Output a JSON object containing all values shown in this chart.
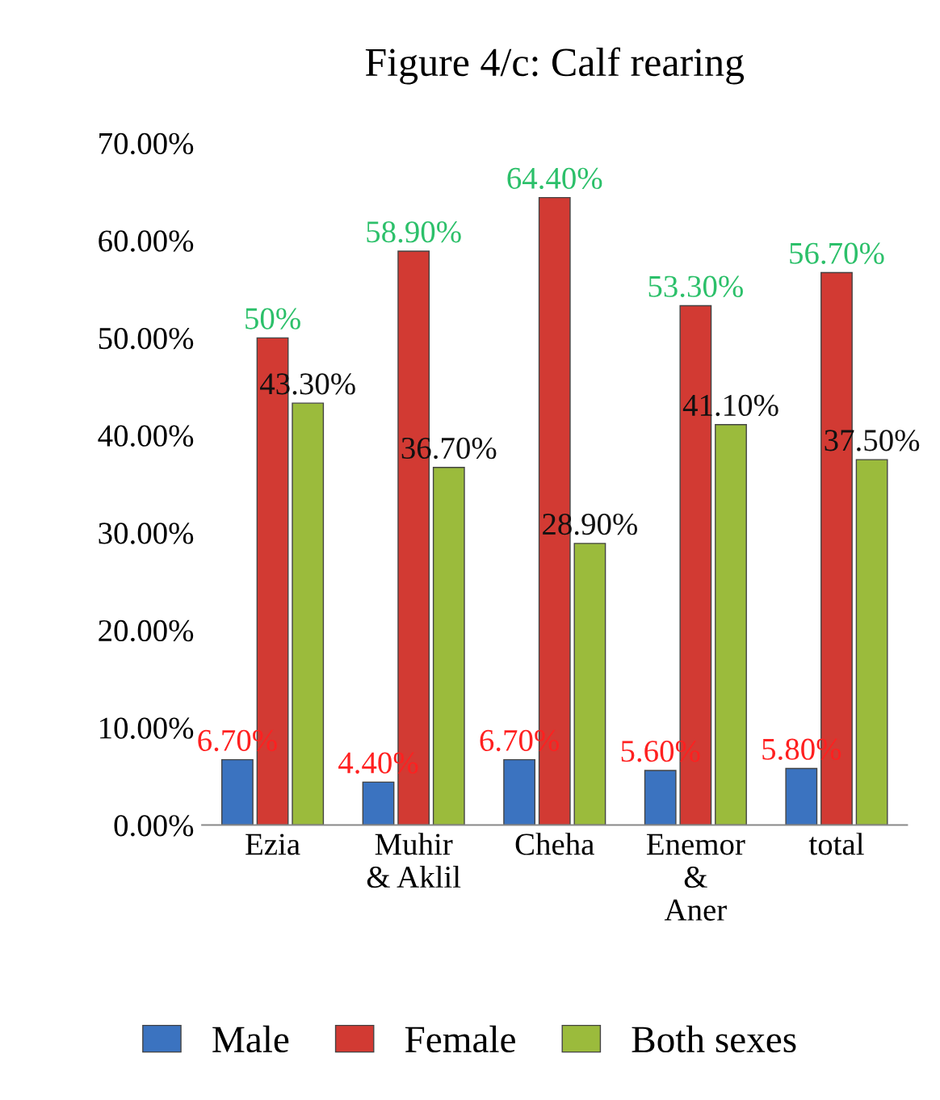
{
  "chart_data": {
    "type": "bar",
    "title": "Figure 4/c: Calf rearing",
    "categories": [
      "Ezia",
      "Muhir\n& Aklil",
      "Cheha",
      "Enemor\n&\nAner",
      "total"
    ],
    "series": [
      {
        "name": "Male",
        "color": "#3b73c0",
        "values": [
          6.7,
          4.4,
          6.7,
          5.6,
          5.8
        ],
        "value_labels": [
          "6.70%",
          "4.40%",
          "6.70%",
          "5.60%",
          "5.80%"
        ]
      },
      {
        "name": "Female",
        "color": "#d23a33",
        "values": [
          50,
          58.9,
          64.4,
          53.3,
          56.7
        ],
        "value_labels": [
          "50%",
          "58.90%",
          "64.40%",
          "53.30%",
          "56.70%"
        ]
      },
      {
        "name": "Both sexes",
        "color": "#9bbb3c",
        "values": [
          43.3,
          36.7,
          28.9,
          41.1,
          37.5
        ],
        "value_labels": [
          "43.30%",
          "36.70%",
          "28.90%",
          "41.10%",
          "37.50%"
        ]
      }
    ],
    "ylim": [
      0,
      70
    ],
    "yticks": [
      {
        "value": 0,
        "label": "0.00%"
      },
      {
        "value": 10,
        "label": "10.00%"
      },
      {
        "value": 20,
        "label": "20.00%"
      },
      {
        "value": 30,
        "label": "30.00%"
      },
      {
        "value": 40,
        "label": "40.00%"
      },
      {
        "value": 50,
        "label": "50.00%"
      },
      {
        "value": 60,
        "label": "60.00%"
      },
      {
        "value": 70,
        "label": "70.00%"
      }
    ],
    "grid": false,
    "legend": "bottom"
  }
}
